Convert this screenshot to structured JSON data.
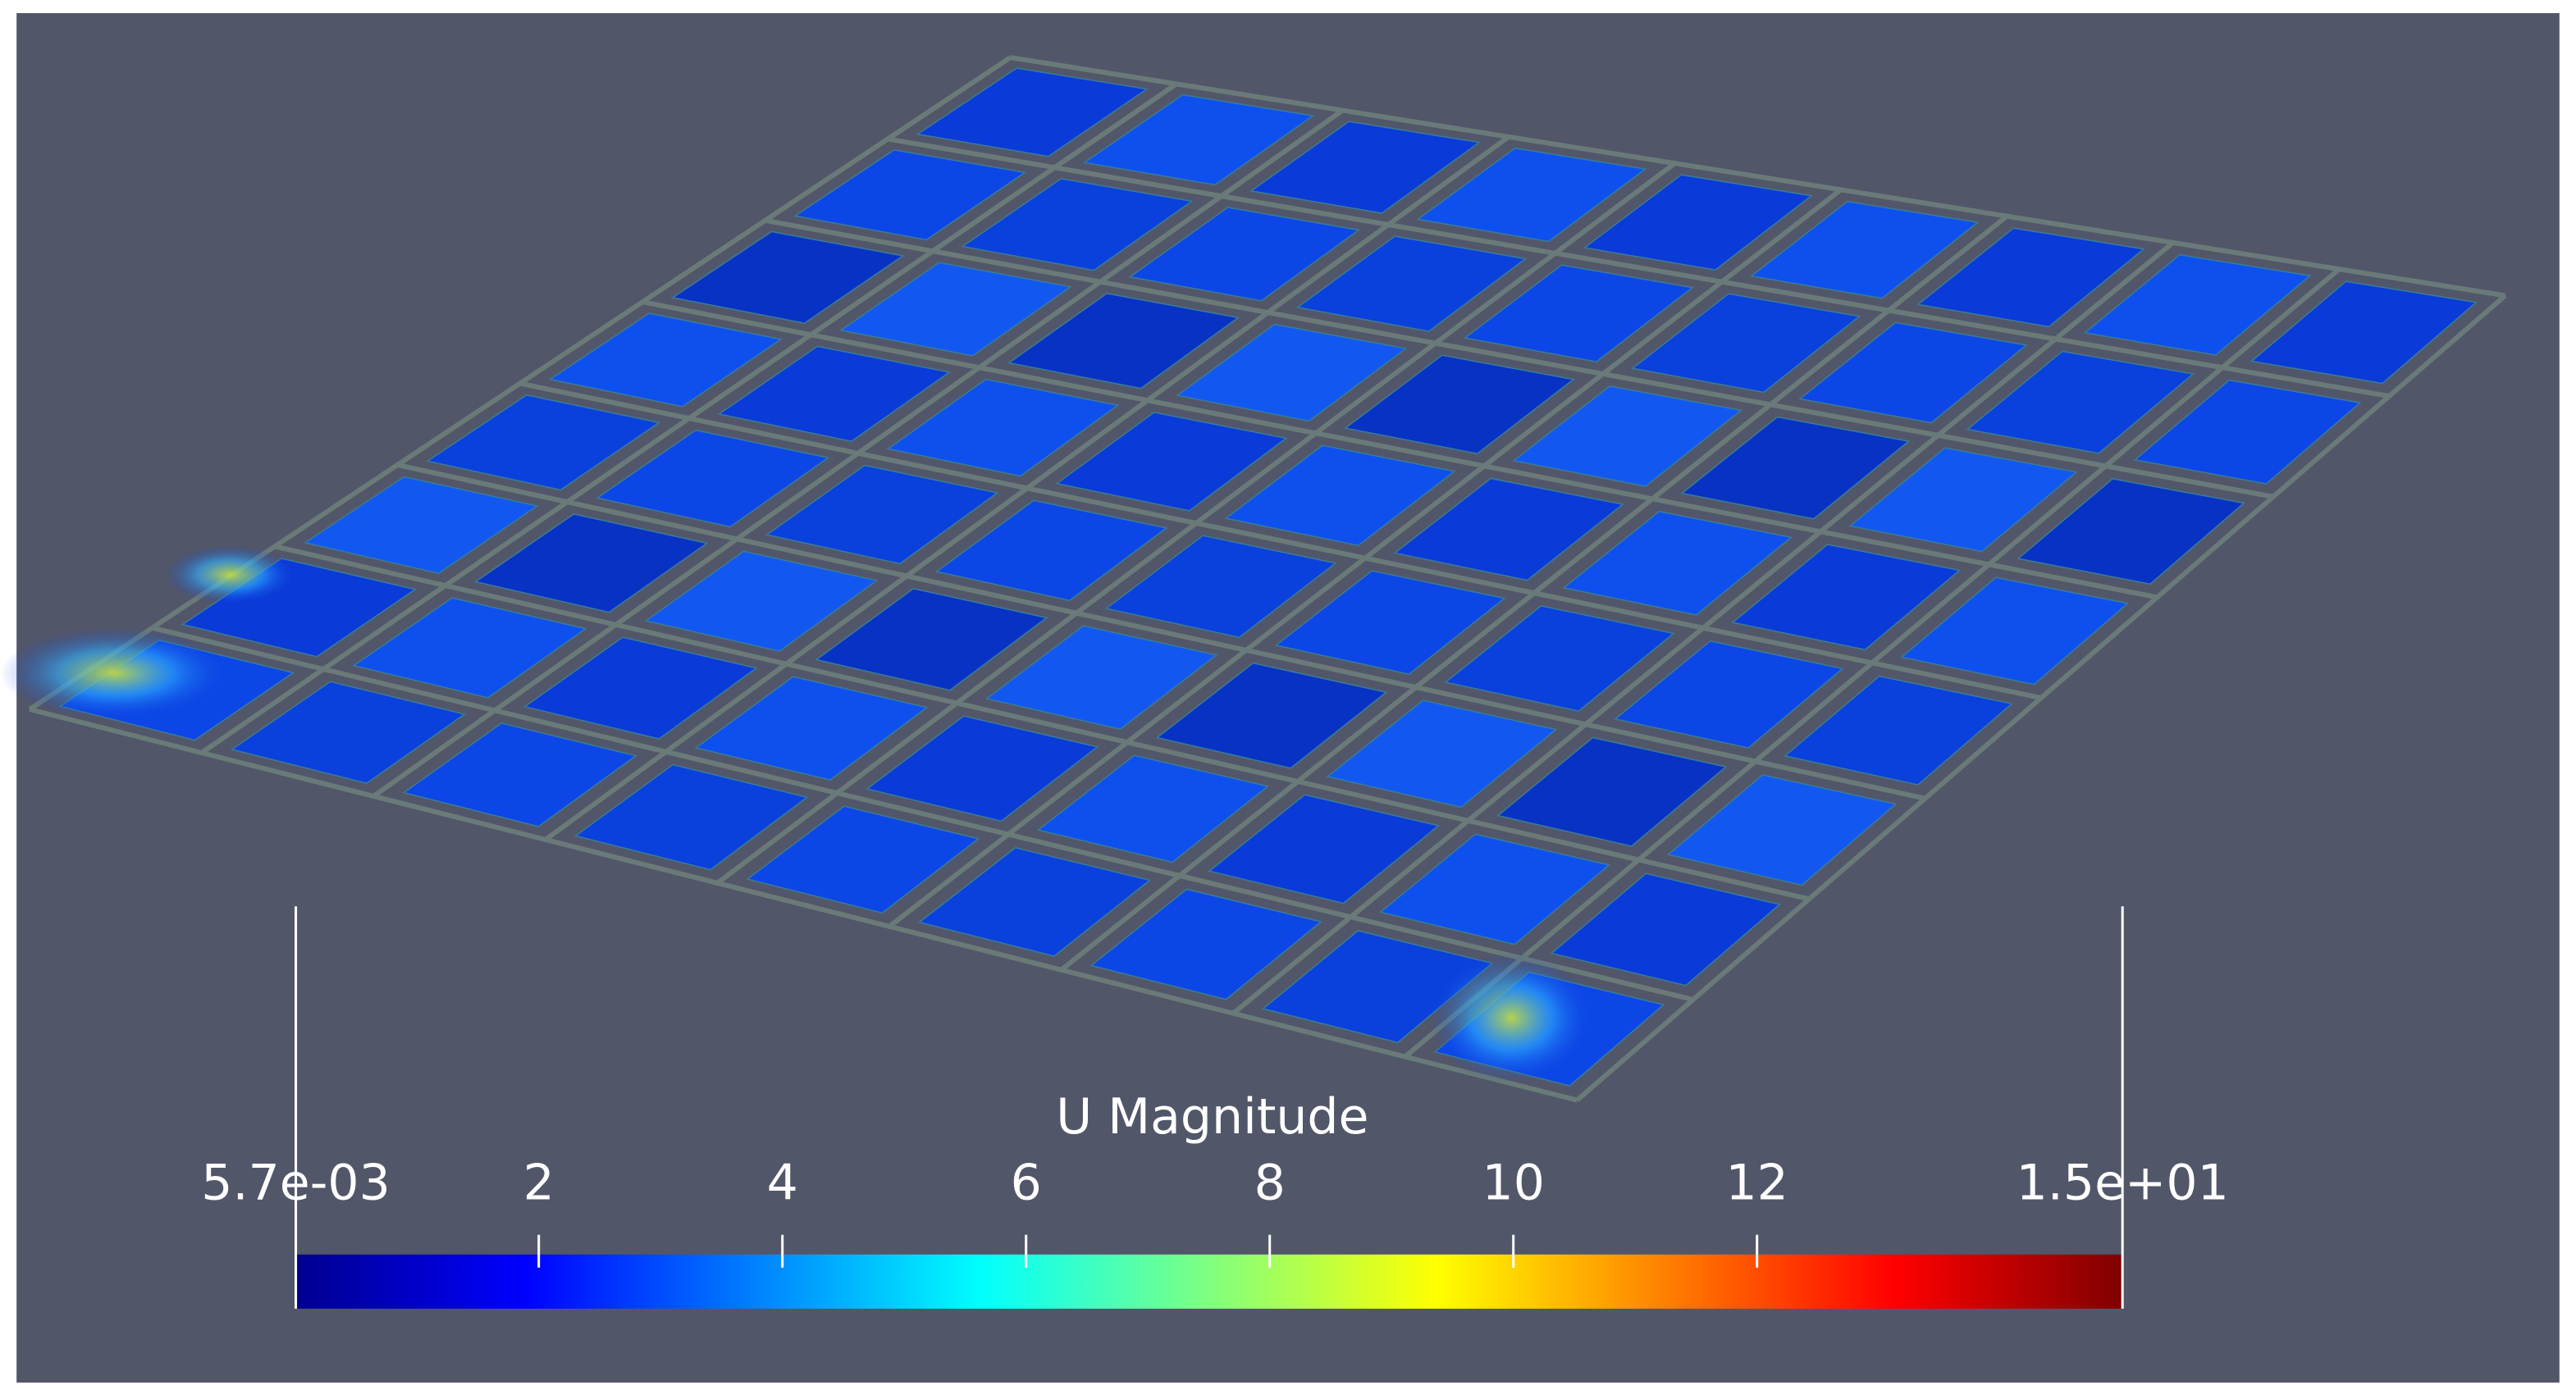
{
  "colorbar": {
    "title": "U Magnitude",
    "range": [
      0.0057,
      15
    ],
    "ticks": [
      {
        "value": 0.0057,
        "label": "5.7e-03"
      },
      2,
      4,
      6,
      8,
      10,
      12,
      {
        "value": 15,
        "label": "1.5e+01"
      }
    ]
  }
}
